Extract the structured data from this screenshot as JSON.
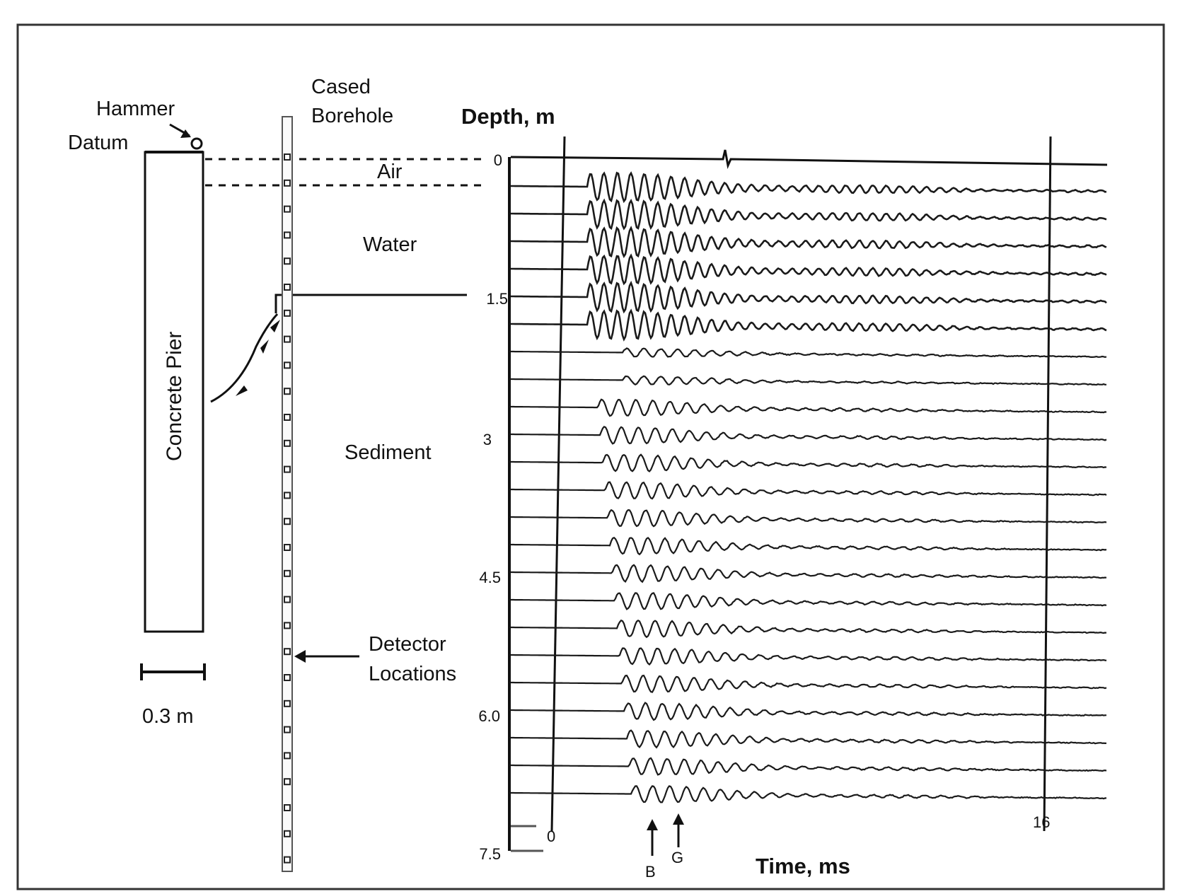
{
  "labels": {
    "hammer": "Hammer",
    "datum": "Datum",
    "cased": "Cased",
    "borehole": "Borehole",
    "concrete_pier": "Concrete Pier",
    "air": "Air",
    "water": "Water",
    "sediment": "Sediment",
    "detector_1": "Detector",
    "detector_2": "Locations",
    "scale": "0.3 m",
    "depth_axis": "Depth, m",
    "time_axis": "Time, ms",
    "arrival_b": "B",
    "arrival_g": "G"
  },
  "chart_data": {
    "type": "line",
    "title": "",
    "ylabel": "Depth, m",
    "xlabel": "Time, ms",
    "depth_ticks": [
      "0",
      "1.5",
      "3",
      "4.5",
      "6.0",
      "7.5"
    ],
    "time_ticks": [
      "0",
      "16"
    ],
    "depth_range_m": [
      0,
      7.5
    ],
    "time_markers_ms": [
      0,
      16
    ],
    "layers": [
      {
        "name": "Air",
        "top_m": 0,
        "bottom_m": 0.3
      },
      {
        "name": "Water",
        "top_m": 0.3,
        "bottom_m": 1.5
      },
      {
        "name": "Sediment",
        "top_m": 1.5,
        "bottom_m": 7.5
      }
    ],
    "arrivals": [
      "B",
      "G"
    ],
    "trace_count": 23
  }
}
